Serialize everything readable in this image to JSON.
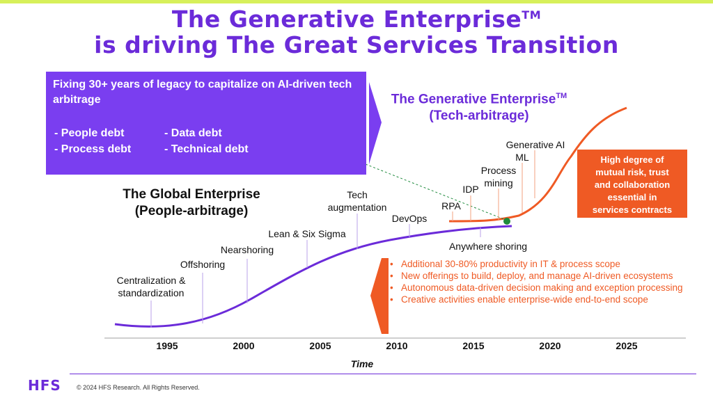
{
  "title": {
    "line1": "The Generative Enterprise",
    "line1_tm": "TM",
    "line2": "is driving The Great Services Transition"
  },
  "legacy_box": {
    "heading": "Fixing 30+ years of legacy to capitalize on AI-driven tech arbitrage",
    "debts": [
      "- People debt",
      "- Data debt",
      "- Process debt",
      "- Technical debt"
    ]
  },
  "generative_enterprise": {
    "line1": "The Generative Enterprise",
    "tm": "TM",
    "line2": "(Tech-arbitrage)"
  },
  "global_enterprise": {
    "line1": "The Global Enterprise",
    "line2": "(People-arbitrage)"
  },
  "milestones": {
    "centralization": [
      "Centralization &",
      "standardization"
    ],
    "offshoring": "Offshoring",
    "nearshoring": "Nearshoring",
    "lean": "Lean & Six Sigma",
    "tech_aug": [
      "Tech",
      "augmentation"
    ],
    "devops": "DevOps",
    "anywhere": "Anywhere shoring",
    "rpa": "RPA",
    "idp": "IDP",
    "process_mining": [
      "Process",
      "mining"
    ],
    "ml": "ML",
    "genai": "Generative AI"
  },
  "risk_box": {
    "lines": [
      "High degree of",
      "mutual risk, trust",
      "and collaboration",
      "essential in",
      "services contracts"
    ]
  },
  "bullets": [
    "Additional 30-80% productivity in IT & process scope",
    "New offerings to build, deploy, and manage AI-driven ecosystems",
    "Autonomous data-driven decision making and exception processing",
    "Creative activities enable enterprise-wide end-to-end scope"
  ],
  "axis": {
    "years": [
      "1995",
      "2000",
      "2005",
      "2010",
      "2015",
      "2020",
      "2025"
    ],
    "label": "Time"
  },
  "footer": {
    "logo": "HFS",
    "copyright": "© 2024 HFS Research. All Rights Reserved."
  },
  "colors": {
    "purple": "#6b2bd9",
    "box_purple": "#7a3ef0",
    "orange": "#ef5a24",
    "green_dot": "#1e8a3c",
    "top_bar": "#d7f05a"
  }
}
